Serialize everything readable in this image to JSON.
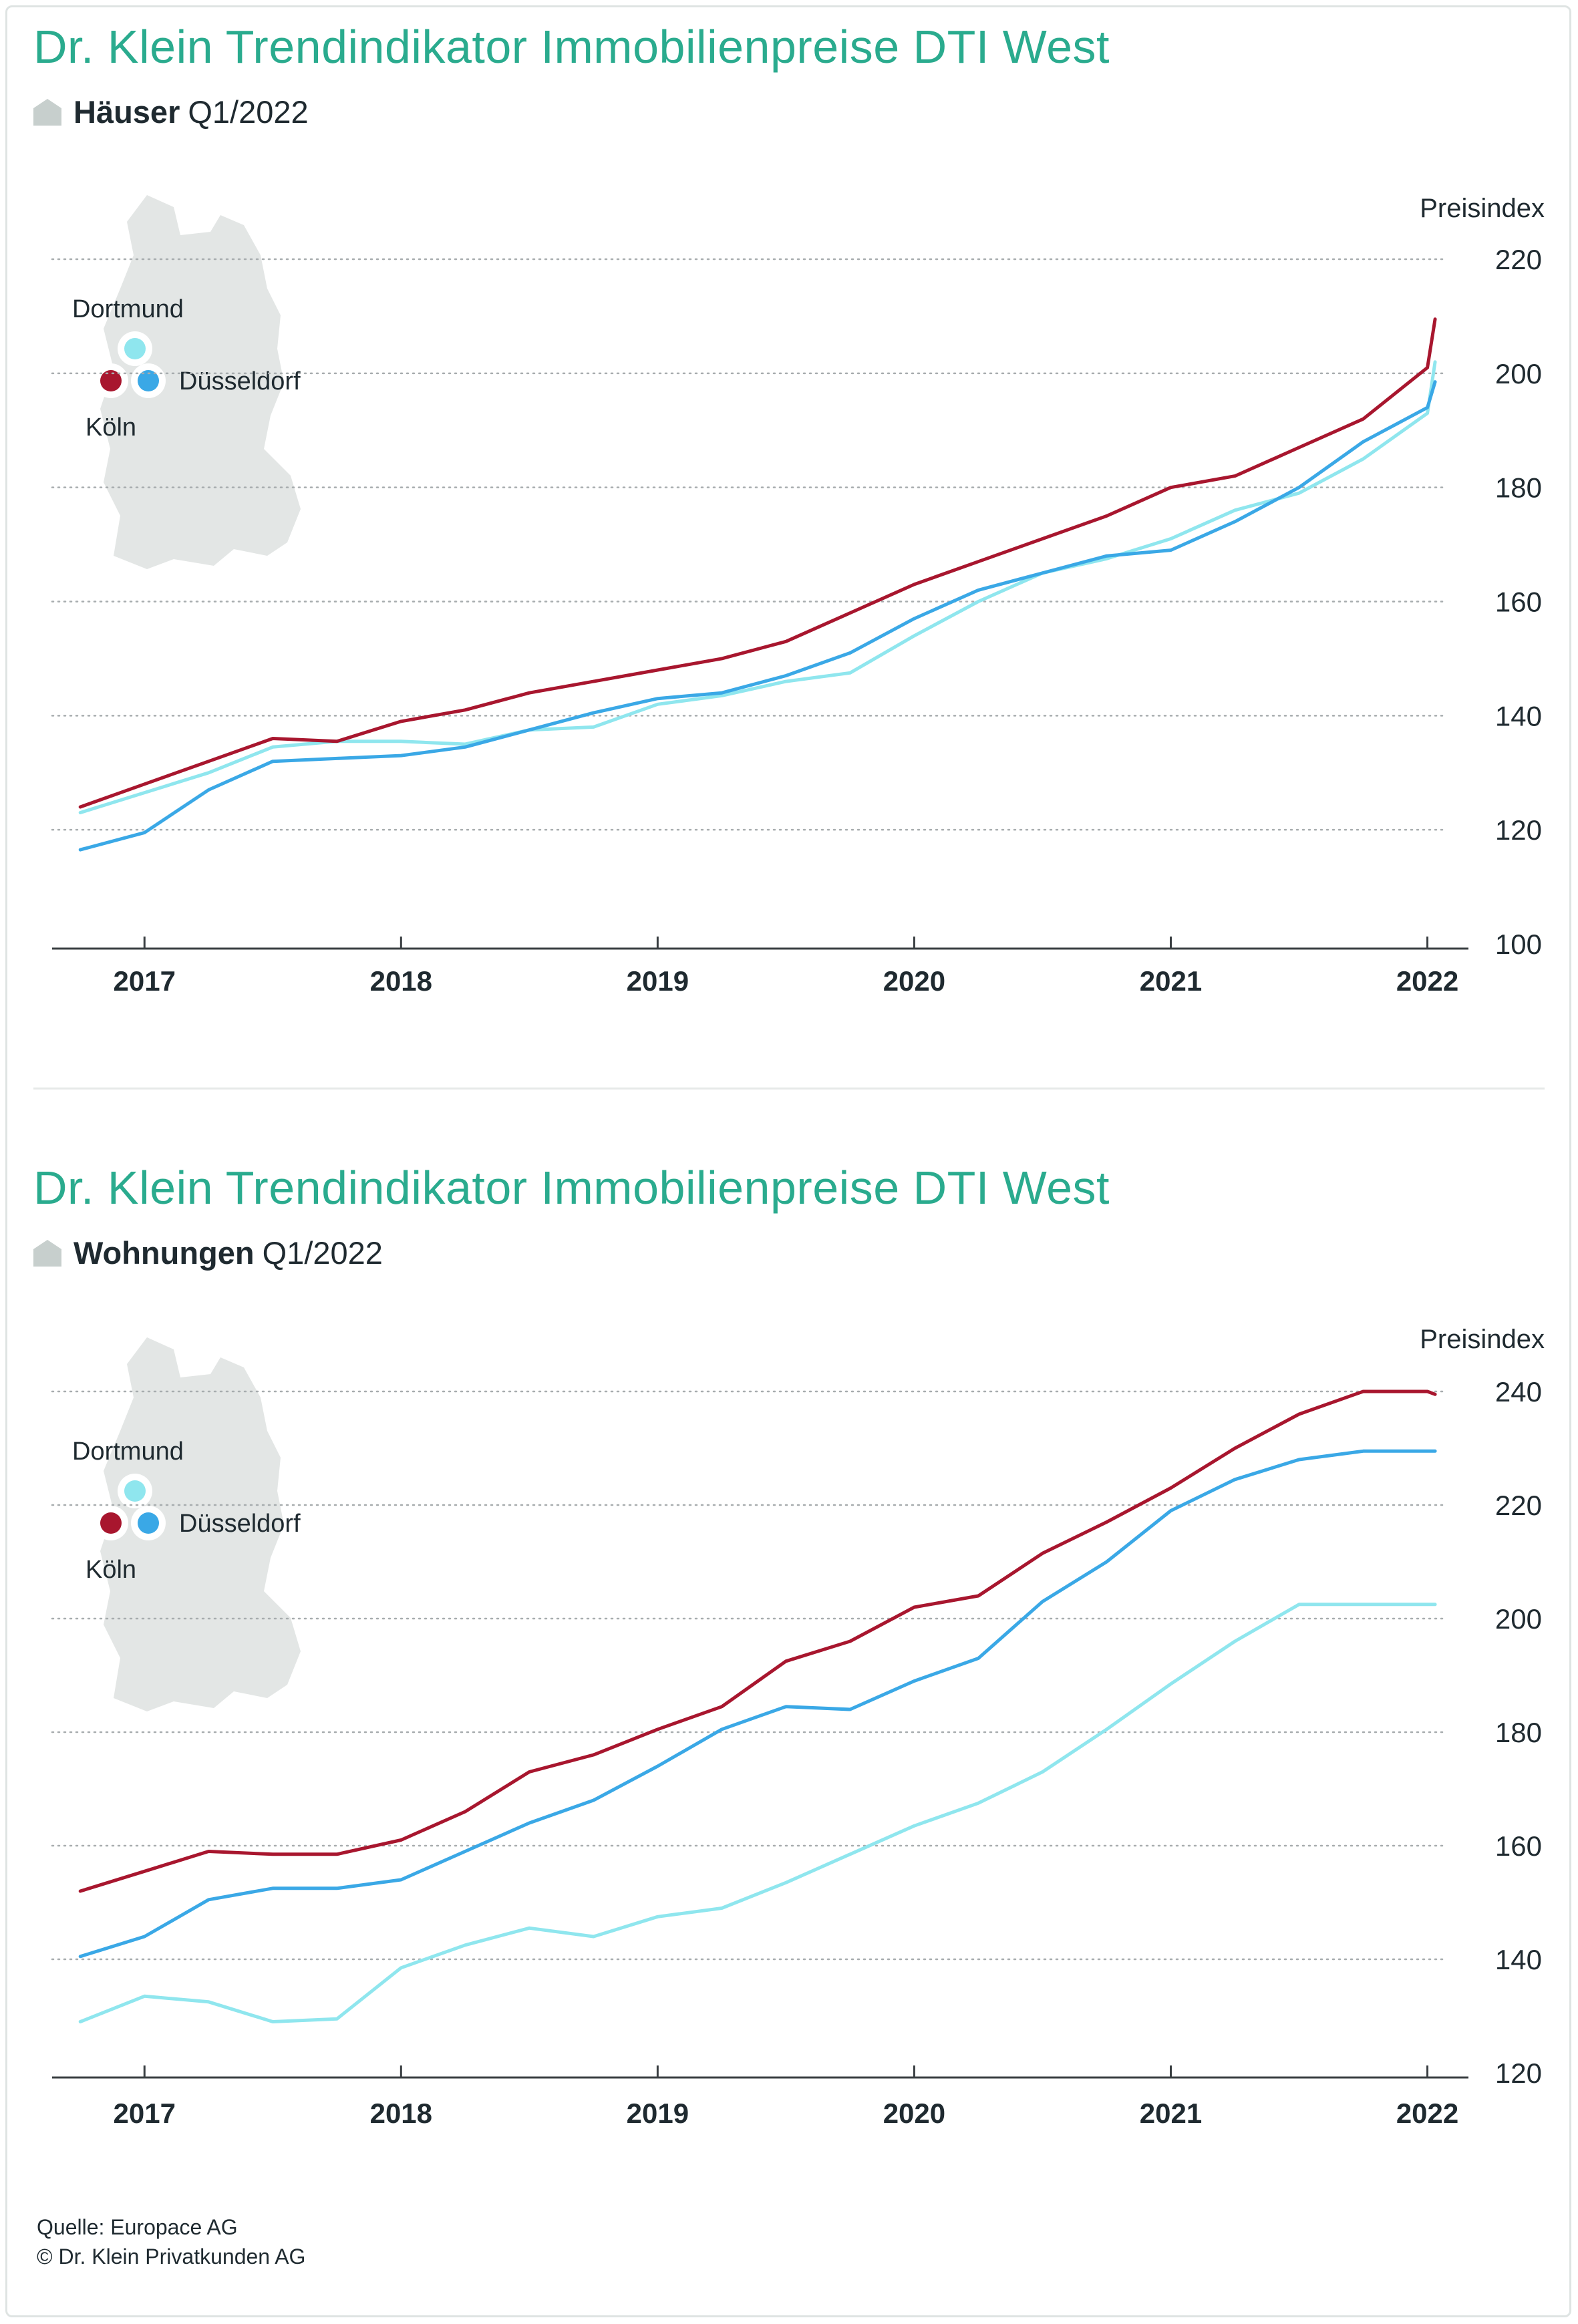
{
  "colors": {
    "title": "#2aab8e",
    "koeln": "#a8162e",
    "duesseldorf": "#3aa8e6",
    "dortmund": "#8fe6ee",
    "map": "#e3e6e5",
    "grid": "#a7acae",
    "axis": "#3a3f42"
  },
  "footer": {
    "source": "Quelle: Europace AG",
    "copyright": "© Dr. Klein Privatkunden AG"
  },
  "legend": {
    "dortmund": "Dortmund",
    "duesseldorf": "Düsseldorf",
    "koeln": "Köln"
  },
  "chart_data": [
    {
      "type": "line",
      "title": "Dr. Klein Trendindikator Immobilienpreise DTI West",
      "subtitle_bold": "Häuser",
      "subtitle": "Q1/2022",
      "ylabel": "Preisindex",
      "ylim": [
        100,
        220
      ],
      "yticks": [
        100,
        120,
        140,
        160,
        180,
        200,
        220
      ],
      "xlim": [
        2016.64,
        2022.16
      ],
      "xticks": [
        2017,
        2018,
        2019,
        2020,
        2021,
        2022
      ],
      "grid": true,
      "x": [
        2016.75,
        2017.0,
        2017.25,
        2017.5,
        2017.75,
        2018.0,
        2018.25,
        2018.5,
        2018.75,
        2019.0,
        2019.25,
        2019.5,
        2019.75,
        2020.0,
        2020.25,
        2020.5,
        2020.75,
        2021.0,
        2021.25,
        2021.5,
        2021.75,
        2022.0
      ],
      "series": [
        {
          "name": "Köln",
          "color": "#a8162e",
          "values": [
            124,
            128,
            132,
            136,
            135.5,
            139,
            141,
            144,
            146,
            148,
            150,
            153,
            158,
            163,
            167,
            171,
            175,
            180,
            182,
            187,
            192,
            201
          ]
        },
        {
          "name": "Düsseldorf",
          "color": "#3aa8e6",
          "values": [
            116.5,
            119.5,
            127,
            132,
            132.5,
            133,
            134.5,
            137.5,
            140.5,
            143,
            144,
            147,
            151,
            157,
            162,
            165,
            168,
            169,
            174,
            180,
            188,
            194
          ]
        },
        {
          "name": "Dortmund",
          "color": "#8fe6ee",
          "values": [
            123,
            126.5,
            130,
            134.5,
            135.5,
            135.5,
            135,
            137.5,
            138,
            142,
            143.5,
            146,
            147.5,
            154,
            160,
            165,
            167.5,
            171,
            176,
            179,
            185,
            193
          ]
        }
      ],
      "x_end": [
        2022.03
      ],
      "series_end": [
        209.5,
        198.5,
        202
      ]
    },
    {
      "type": "line",
      "title": "Dr. Klein Trendindikator Immobilienpreise DTI West",
      "subtitle_bold": "Wohnungen",
      "subtitle": "Q1/2022",
      "ylabel": "Preisindex",
      "ylim": [
        120,
        240
      ],
      "yticks": [
        120,
        140,
        160,
        180,
        200,
        220,
        240
      ],
      "xlim": [
        2016.64,
        2022.16
      ],
      "xticks": [
        2017,
        2018,
        2019,
        2020,
        2021,
        2022
      ],
      "grid": true,
      "x": [
        2016.75,
        2017.0,
        2017.25,
        2017.5,
        2017.75,
        2018.0,
        2018.25,
        2018.5,
        2018.75,
        2019.0,
        2019.25,
        2019.5,
        2019.75,
        2020.0,
        2020.25,
        2020.5,
        2020.75,
        2021.0,
        2021.25,
        2021.5,
        2021.75,
        2022.0
      ],
      "series": [
        {
          "name": "Köln",
          "color": "#a8162e",
          "values": [
            152,
            155.5,
            159,
            158.5,
            158.5,
            161,
            166,
            173,
            176,
            180.5,
            184.5,
            192.5,
            196,
            202,
            204,
            211.5,
            217,
            223,
            230,
            236,
            240,
            240
          ]
        },
        {
          "name": "Düsseldorf",
          "color": "#3aa8e6",
          "values": [
            140.5,
            144,
            150.5,
            152.5,
            152.5,
            154,
            159,
            164,
            168,
            174,
            180.5,
            184.5,
            184,
            189,
            193,
            203,
            210,
            219,
            224.5,
            228,
            229.5,
            229.5
          ]
        },
        {
          "name": "Dortmund",
          "color": "#8fe6ee",
          "values": [
            129,
            133.5,
            132.5,
            129,
            129.5,
            138.5,
            142.5,
            145.5,
            144,
            147.5,
            149,
            153.5,
            158.5,
            163.5,
            167.5,
            173,
            180.5,
            188.5,
            196,
            202.5,
            202.5,
            202.5
          ]
        }
      ],
      "x_end": [
        2022.03
      ],
      "series_end": [
        239.5,
        229.5,
        202.5
      ]
    }
  ]
}
